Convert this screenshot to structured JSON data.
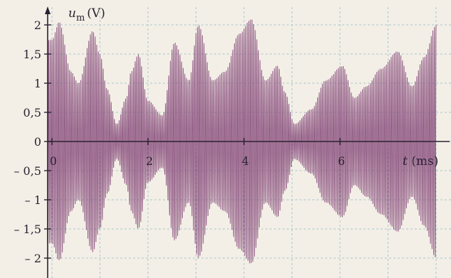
{
  "chart_data": {
    "type": "line",
    "title": "",
    "xlabel": "t (ms)",
    "ylabel_symbol": "u",
    "ylabel_subscript": "m",
    "ylabel_unit": "(V)",
    "xlim": [
      -0.1,
      8.0
    ],
    "ylim": [
      -2.2,
      2.2
    ],
    "grid": true,
    "x_tick_values": [
      0,
      2,
      4,
      6
    ],
    "x_tick_labels": [
      "0",
      "2",
      "4",
      "6"
    ],
    "y_tick_values": [
      2,
      1.5,
      1,
      0.5,
      0,
      -0.5,
      -1,
      -1.5,
      -2
    ],
    "y_tick_labels": [
      "2",
      "1,5",
      "1",
      "0,5",
      "0",
      "– 0,5",
      "– 1",
      "– 1,5",
      "– 2"
    ],
    "series": [
      {
        "name": "",
        "color": "#8a4f7d",
        "carrier_frequency_khz": 30,
        "envelope": {
          "x": [
            0.0,
            0.15,
            0.4,
            0.55,
            0.85,
            1.0,
            1.15,
            1.35,
            1.55,
            1.65,
            1.8,
            2.0,
            2.3,
            2.55,
            2.85,
            3.05,
            3.35,
            3.6,
            3.9,
            4.15,
            4.45,
            4.7,
            4.85,
            5.05,
            5.4,
            5.7,
            6.05,
            6.3,
            6.55,
            6.85,
            7.2,
            7.5,
            7.75,
            8.0
          ],
          "y": [
            1.75,
            2.05,
            1.2,
            1.0,
            1.9,
            1.5,
            0.9,
            0.3,
            0.75,
            1.2,
            1.5,
            0.7,
            0.45,
            1.7,
            1.05,
            2.0,
            1.05,
            1.2,
            1.85,
            2.1,
            1.05,
            1.3,
            0.85,
            0.3,
            0.55,
            1.05,
            1.3,
            0.75,
            0.95,
            1.25,
            1.55,
            0.95,
            1.45,
            2.0
          ]
        }
      }
    ]
  }
}
